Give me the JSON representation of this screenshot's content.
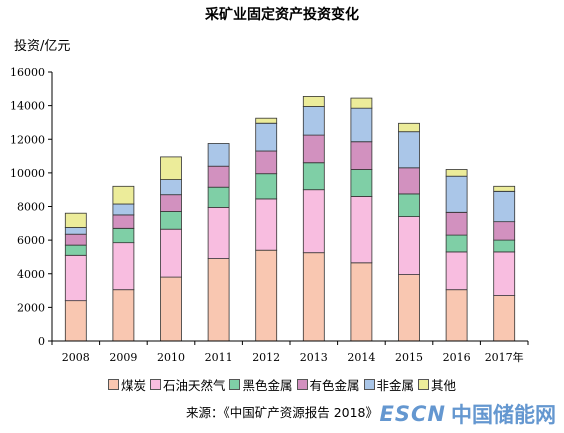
{
  "title": "采矿业固定资产投资变化",
  "y_unit_label": "投资/亿元",
  "source": "来源：《中国矿产资源报告 2018》",
  "watermark": {
    "latin": "ESCN",
    "cjk": "中国储能网"
  },
  "colors": {
    "煤炭": "#f9c7b1",
    "石油天然气": "#f8bde0",
    "黑色金属": "#7fcfa6",
    "有色金属": "#d291bf",
    "非金属": "#aac6e8",
    "其他": "#ecec9a"
  },
  "chart_data": {
    "type": "bar",
    "stacked": true,
    "title": "采矿业固定资产投资变化",
    "ylabel": "投资/亿元",
    "xlabel": "",
    "ylim": [
      0,
      16000
    ],
    "yticks": [
      0,
      2000,
      4000,
      6000,
      8000,
      10000,
      12000,
      14000,
      16000
    ],
    "categories": [
      "2008",
      "2009",
      "2010",
      "2011",
      "2012",
      "2013",
      "2014",
      "2015",
      "2016",
      "2017年"
    ],
    "series": [
      {
        "name": "煤炭",
        "values": [
          2400,
          3050,
          3800,
          4900,
          5400,
          5250,
          4650,
          3950,
          3050,
          2700
        ]
      },
      {
        "name": "石油天然气",
        "values": [
          2700,
          2800,
          2850,
          3050,
          3050,
          3750,
          3950,
          3450,
          2250,
          2600
        ]
      },
      {
        "name": "黑色金属",
        "values": [
          600,
          850,
          1050,
          1200,
          1500,
          1600,
          1600,
          1350,
          1000,
          700
        ]
      },
      {
        "name": "有色金属",
        "values": [
          650,
          800,
          1000,
          1250,
          1350,
          1650,
          1650,
          1550,
          1350,
          1100
        ]
      },
      {
        "name": "非金属",
        "values": [
          400,
          650,
          900,
          1350,
          1650,
          1700,
          2000,
          2150,
          2150,
          1800
        ]
      },
      {
        "name": "其他",
        "values": [
          850,
          1050,
          1350,
          0,
          300,
          600,
          600,
          500,
          400,
          300
        ]
      }
    ],
    "grid": false,
    "legend_position": "bottom"
  }
}
